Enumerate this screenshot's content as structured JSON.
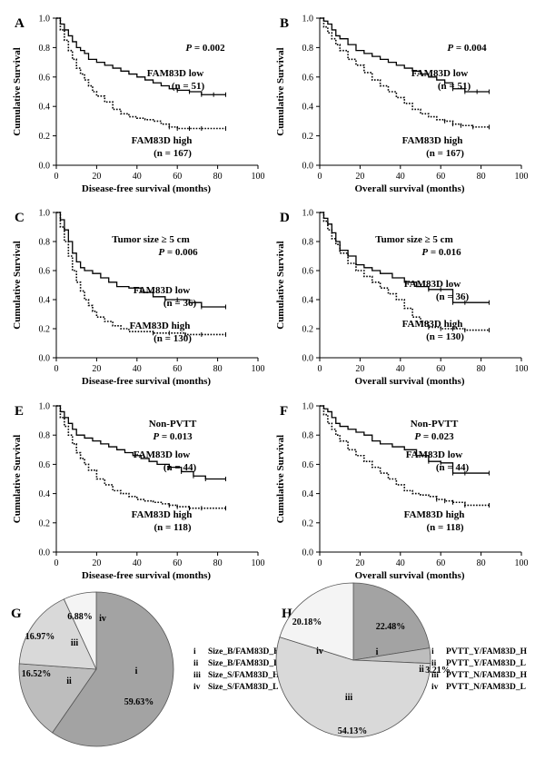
{
  "chart_data": [
    {
      "type": "line",
      "panel": "A",
      "xlabel": "Disease-free survival (months)",
      "ylabel": "Cumulative Survival",
      "xlim": [
        0,
        100
      ],
      "ylim": [
        0,
        1.0
      ],
      "xticks": [
        "0",
        "20",
        "40",
        "60",
        "80",
        "100"
      ],
      "yticks": [
        "0.0",
        "0.2",
        "0.4",
        "0.6",
        "0.8",
        "1.0"
      ],
      "annotations": [
        {
          "prefix": "P",
          "value": " = 0.002"
        }
      ],
      "series": [
        {
          "name": "FAM83D low",
          "n_label": "(n = 51)",
          "style": "solid",
          "x": [
            0,
            2,
            4,
            6,
            8,
            10,
            12,
            14,
            16,
            20,
            24,
            28,
            32,
            36,
            40,
            44,
            48,
            52,
            56,
            60,
            66,
            72,
            78,
            84
          ],
          "y": [
            1.0,
            0.96,
            0.92,
            0.88,
            0.84,
            0.8,
            0.78,
            0.76,
            0.72,
            0.7,
            0.68,
            0.66,
            0.64,
            0.62,
            0.6,
            0.58,
            0.56,
            0.54,
            0.52,
            0.51,
            0.5,
            0.48,
            0.48,
            0.48
          ]
        },
        {
          "name": "FAM83D high",
          "n_label": "(n = 167)",
          "style": "dotted",
          "x": [
            0,
            2,
            4,
            6,
            8,
            10,
            12,
            14,
            16,
            18,
            20,
            24,
            28,
            32,
            36,
            40,
            44,
            48,
            52,
            56,
            60,
            66,
            72,
            84
          ],
          "y": [
            1.0,
            0.92,
            0.85,
            0.78,
            0.72,
            0.66,
            0.62,
            0.58,
            0.54,
            0.5,
            0.47,
            0.43,
            0.38,
            0.35,
            0.33,
            0.32,
            0.31,
            0.3,
            0.28,
            0.26,
            0.25,
            0.25,
            0.25,
            0.25
          ]
        }
      ]
    },
    {
      "type": "line",
      "panel": "B",
      "xlabel": "Overall survival (months)",
      "ylabel": "Cumulative Survival",
      "xlim": [
        0,
        100
      ],
      "ylim": [
        0,
        1.0
      ],
      "xticks": [
        "0",
        "20",
        "40",
        "60",
        "80",
        "100"
      ],
      "yticks": [
        "0.0",
        "0.2",
        "0.4",
        "0.6",
        "0.8",
        "1.0"
      ],
      "annotations": [
        {
          "prefix": "P",
          "value": " = 0.004"
        }
      ],
      "series": [
        {
          "name": "FAM83D low",
          "n_label": "(n = 51)",
          "style": "solid",
          "x": [
            0,
            2,
            4,
            6,
            8,
            10,
            14,
            18,
            22,
            26,
            30,
            34,
            38,
            42,
            46,
            50,
            54,
            58,
            62,
            66,
            72,
            78,
            84
          ],
          "y": [
            1.0,
            0.98,
            0.96,
            0.92,
            0.88,
            0.86,
            0.82,
            0.78,
            0.76,
            0.74,
            0.72,
            0.7,
            0.68,
            0.66,
            0.64,
            0.62,
            0.6,
            0.58,
            0.56,
            0.52,
            0.5,
            0.5,
            0.5
          ]
        },
        {
          "name": "FAM83D high",
          "n_label": "(n = 167)",
          "style": "dotted",
          "x": [
            0,
            2,
            4,
            6,
            8,
            10,
            14,
            18,
            22,
            26,
            30,
            34,
            38,
            42,
            46,
            50,
            54,
            58,
            62,
            66,
            70,
            76,
            84
          ],
          "y": [
            1.0,
            0.94,
            0.9,
            0.86,
            0.82,
            0.78,
            0.72,
            0.68,
            0.63,
            0.58,
            0.54,
            0.5,
            0.46,
            0.42,
            0.38,
            0.35,
            0.33,
            0.31,
            0.3,
            0.28,
            0.27,
            0.26,
            0.26
          ]
        }
      ]
    },
    {
      "type": "line",
      "panel": "C",
      "xlabel": "Disease-free survival (months)",
      "ylabel": "Cumulative Survival",
      "xlim": [
        0,
        100
      ],
      "ylim": [
        0,
        1.0
      ],
      "xticks": [
        "0",
        "20",
        "40",
        "60",
        "80",
        "100"
      ],
      "yticks": [
        "0.0",
        "0.2",
        "0.4",
        "0.6",
        "0.8",
        "1.0"
      ],
      "annotations": [
        {
          "prefix": "",
          "value": "Tumor size ≥ 5 cm"
        },
        {
          "prefix": "P",
          "value": " = 0.006"
        }
      ],
      "series": [
        {
          "name": "FAM83D low",
          "n_label": "(n = 36)",
          "style": "solid",
          "x": [
            0,
            2,
            4,
            6,
            8,
            10,
            12,
            14,
            18,
            22,
            26,
            30,
            36,
            42,
            48,
            54,
            60,
            66,
            72,
            84
          ],
          "y": [
            1.0,
            0.95,
            0.88,
            0.8,
            0.72,
            0.66,
            0.62,
            0.6,
            0.58,
            0.55,
            0.52,
            0.49,
            0.48,
            0.45,
            0.42,
            0.4,
            0.4,
            0.38,
            0.35,
            0.35
          ]
        },
        {
          "name": "FAM83D high",
          "n_label": "(n = 130)",
          "style": "dotted",
          "x": [
            0,
            2,
            4,
            6,
            8,
            10,
            12,
            14,
            16,
            18,
            20,
            24,
            28,
            32,
            36,
            40,
            48,
            56,
            64,
            72,
            84
          ],
          "y": [
            1.0,
            0.9,
            0.8,
            0.7,
            0.6,
            0.52,
            0.46,
            0.4,
            0.36,
            0.32,
            0.28,
            0.25,
            0.22,
            0.2,
            0.18,
            0.18,
            0.17,
            0.17,
            0.16,
            0.16,
            0.16
          ]
        }
      ]
    },
    {
      "type": "line",
      "panel": "D",
      "xlabel": "Overall survival (months)",
      "ylabel": "Cumulative Survival",
      "xlim": [
        0,
        100
      ],
      "ylim": [
        0,
        1.0
      ],
      "xticks": [
        "0",
        "20",
        "40",
        "60",
        "80",
        "100"
      ],
      "yticks": [
        "0.0",
        "0.2",
        "0.4",
        "0.6",
        "0.8",
        "1.0"
      ],
      "annotations": [
        {
          "prefix": "",
          "value": "Tumor size ≥ 5 cm"
        },
        {
          "prefix": "P",
          "value": " = 0.016"
        }
      ],
      "series": [
        {
          "name": "FAM83D low",
          "n_label": "(n = 36)",
          "style": "solid",
          "x": [
            0,
            2,
            4,
            6,
            8,
            10,
            14,
            18,
            22,
            26,
            30,
            36,
            42,
            48,
            54,
            60,
            66,
            72,
            84
          ],
          "y": [
            1.0,
            0.96,
            0.92,
            0.86,
            0.8,
            0.74,
            0.7,
            0.64,
            0.62,
            0.6,
            0.58,
            0.55,
            0.52,
            0.49,
            0.47,
            0.47,
            0.38,
            0.38,
            0.38
          ]
        },
        {
          "name": "FAM83D high",
          "n_label": "(n = 130)",
          "style": "dotted",
          "x": [
            0,
            2,
            4,
            6,
            8,
            10,
            14,
            18,
            22,
            26,
            30,
            34,
            38,
            42,
            46,
            50,
            54,
            60,
            66,
            72,
            84
          ],
          "y": [
            1.0,
            0.94,
            0.88,
            0.82,
            0.78,
            0.72,
            0.65,
            0.6,
            0.56,
            0.52,
            0.48,
            0.44,
            0.4,
            0.34,
            0.28,
            0.24,
            0.21,
            0.2,
            0.2,
            0.19,
            0.19
          ]
        }
      ]
    },
    {
      "type": "line",
      "panel": "E",
      "xlabel": "Disease-free survival (months)",
      "ylabel": "Cumulative Survival",
      "xlim": [
        0,
        100
      ],
      "ylim": [
        0,
        1.0
      ],
      "xticks": [
        "0",
        "20",
        "40",
        "60",
        "80",
        "100"
      ],
      "yticks": [
        "0.0",
        "0.2",
        "0.4",
        "0.6",
        "0.8",
        "1.0"
      ],
      "annotations": [
        {
          "prefix": "",
          "value": "Non-PVTT"
        },
        {
          "prefix": "P",
          "value": " = 0.013"
        }
      ],
      "series": [
        {
          "name": "FAM83D low",
          "n_label": "(n = 44)",
          "style": "solid",
          "x": [
            0,
            2,
            4,
            6,
            8,
            10,
            14,
            18,
            22,
            26,
            30,
            34,
            38,
            42,
            46,
            50,
            56,
            62,
            68,
            74,
            84
          ],
          "y": [
            1.0,
            0.96,
            0.92,
            0.88,
            0.84,
            0.8,
            0.78,
            0.76,
            0.74,
            0.72,
            0.7,
            0.68,
            0.66,
            0.64,
            0.62,
            0.6,
            0.58,
            0.55,
            0.52,
            0.5,
            0.5
          ]
        },
        {
          "name": "FAM83D high",
          "n_label": "(n = 118)",
          "style": "dotted",
          "x": [
            0,
            2,
            4,
            6,
            8,
            10,
            12,
            14,
            16,
            20,
            24,
            28,
            32,
            36,
            40,
            44,
            48,
            52,
            56,
            60,
            66,
            72,
            84
          ],
          "y": [
            1.0,
            0.92,
            0.86,
            0.8,
            0.74,
            0.68,
            0.64,
            0.6,
            0.56,
            0.5,
            0.46,
            0.42,
            0.4,
            0.38,
            0.36,
            0.35,
            0.34,
            0.33,
            0.32,
            0.31,
            0.3,
            0.3,
            0.3
          ]
        }
      ]
    },
    {
      "type": "line",
      "panel": "F",
      "xlabel": "Overall survival (months)",
      "ylabel": "Cumulative Survival",
      "xlim": [
        0,
        100
      ],
      "ylim": [
        0,
        1.0
      ],
      "xticks": [
        "0",
        "20",
        "40",
        "60",
        "80",
        "100"
      ],
      "yticks": [
        "0.0",
        "0.2",
        "0.4",
        "0.6",
        "0.8",
        "1.0"
      ],
      "annotations": [
        {
          "prefix": "",
          "value": "Non-PVTT"
        },
        {
          "prefix": "P",
          "value": " = 0.023"
        }
      ],
      "series": [
        {
          "name": "FAM83D low",
          "n_label": "(n = 44)",
          "style": "solid",
          "x": [
            0,
            2,
            4,
            6,
            8,
            10,
            14,
            18,
            22,
            26,
            30,
            36,
            42,
            48,
            54,
            60,
            66,
            72,
            84
          ],
          "y": [
            1.0,
            0.98,
            0.96,
            0.92,
            0.88,
            0.86,
            0.84,
            0.82,
            0.8,
            0.76,
            0.74,
            0.72,
            0.7,
            0.66,
            0.62,
            0.61,
            0.54,
            0.54,
            0.54
          ]
        },
        {
          "name": "FAM83D high",
          "n_label": "(n = 118)",
          "style": "dotted",
          "x": [
            0,
            2,
            4,
            6,
            8,
            10,
            14,
            18,
            22,
            26,
            30,
            34,
            38,
            42,
            46,
            50,
            54,
            58,
            62,
            66,
            72,
            84
          ],
          "y": [
            1.0,
            0.94,
            0.88,
            0.84,
            0.8,
            0.76,
            0.7,
            0.66,
            0.62,
            0.58,
            0.54,
            0.5,
            0.46,
            0.42,
            0.4,
            0.39,
            0.38,
            0.36,
            0.35,
            0.34,
            0.32,
            0.32
          ]
        }
      ]
    },
    {
      "type": "pie",
      "panel": "G",
      "slices": [
        {
          "label": "i",
          "name": "Size_B/FAM83D_H",
          "value": 59.63,
          "display": "59.63%",
          "color": "#a3a3a3"
        },
        {
          "label": "ii",
          "name": "Size_B/FAM83D_L",
          "value": 16.52,
          "display": "16.52%",
          "color": "#bdbdbd"
        },
        {
          "label": "iii",
          "name": "Size_S/FAM83D_H",
          "value": 16.97,
          "display": "16.97%",
          "color": "#d9d9d9"
        },
        {
          "label": "iv",
          "name": "Size_S/FAM83D_L",
          "value": 6.88,
          "display": "6.88%",
          "color": "#f4f4f4"
        }
      ]
    },
    {
      "type": "pie",
      "panel": "H",
      "slices": [
        {
          "label": "i",
          "name": "PVTT_Y/FAM83D_H",
          "value": 22.48,
          "display": "22.48%",
          "color": "#a3a3a3"
        },
        {
          "label": "ii",
          "name": "PVTT_Y/FAM83D_L",
          "value": 3.21,
          "display": "3.21%",
          "color": "#bdbdbd"
        },
        {
          "label": "iii",
          "name": "PVTT_N/FAM83D_H",
          "value": 54.13,
          "display": "54.13%",
          "color": "#d9d9d9"
        },
        {
          "label": "iv",
          "name": "PVTT_N/FAM83D_L",
          "value": 20.18,
          "display": "20.18%",
          "color": "#f4f4f4"
        }
      ]
    }
  ]
}
